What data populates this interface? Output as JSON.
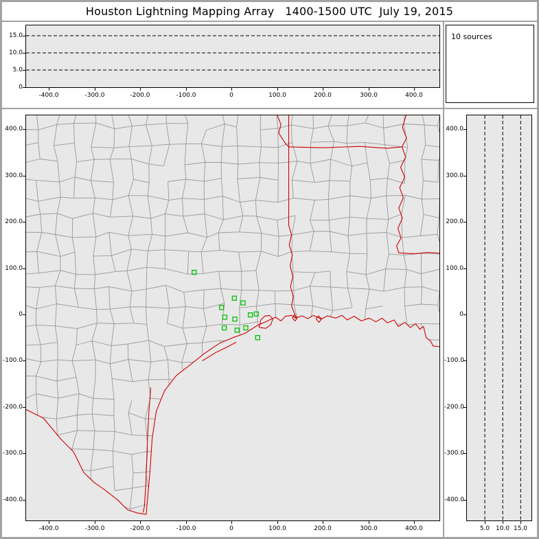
{
  "title": "Houston Lightning Mapping Array   1400-1500 UTC  July 19, 2015",
  "sources_panel": {
    "label": "10 sources"
  },
  "colors": {
    "station_green": "#00c000",
    "boundary_red": "#cc0000",
    "county_gray": "#999999",
    "plot_background": "#e8e8e8",
    "frame_gray": "#a2a2a2"
  },
  "chart_data": [
    {
      "id": "altitude-vs-eastwest",
      "type": "scatter",
      "position": "top",
      "xlim": [
        -450,
        455
      ],
      "ylim": [
        0,
        18
      ],
      "x_ticks": [
        -400,
        -300,
        -200,
        -100,
        0,
        100,
        200,
        300,
        400
      ],
      "x_tick_labels": [
        "-400.0",
        "-300.0",
        "-200.0",
        "-100.0",
        "0",
        "100.0",
        "200.0",
        "300.0",
        "400.0"
      ],
      "y_ticks": [
        0,
        5,
        10,
        15
      ],
      "y_tick_labels": [
        "0",
        "5.0",
        "10.0",
        "15.0"
      ],
      "y_gridlines": [
        5,
        10,
        15
      ],
      "gridline_style": "dashed",
      "points": []
    },
    {
      "id": "plan-view-map",
      "type": "scatter",
      "position": "main",
      "xlim": [
        -450,
        455
      ],
      "ylim": [
        -445,
        430
      ],
      "x_ticks": [
        -400,
        -300,
        -200,
        -100,
        0,
        100,
        200,
        300,
        400
      ],
      "x_tick_labels": [
        "-400.0",
        "-300.0",
        "-200.0",
        "-100.0",
        "0",
        "100.0",
        "200.0",
        "300.0",
        "400.0"
      ],
      "y_ticks": [
        400,
        300,
        200,
        100,
        0,
        -100,
        -200,
        -300,
        -400
      ],
      "y_tick_labels": [
        "400.0",
        "300.0",
        "200.0",
        "100.0",
        "0",
        "-100.0",
        "-200.0",
        "-300.0",
        "-400.0"
      ],
      "map_layers": [
        "county-boundaries-gray",
        "state-borders-red",
        "coastline-red"
      ],
      "station_marker": "open-green-square",
      "stations": [
        [
          -82,
          91
        ],
        [
          6,
          35
        ],
        [
          25,
          25
        ],
        [
          -22,
          15
        ],
        [
          -15,
          -6
        ],
        [
          7,
          -10
        ],
        [
          -16,
          -29
        ],
        [
          12,
          -34
        ],
        [
          31,
          -29
        ],
        [
          41,
          -1
        ],
        [
          54,
          1
        ],
        [
          57,
          -50
        ]
      ]
    },
    {
      "id": "altitude-vs-northsouth",
      "type": "scatter",
      "position": "right",
      "xlim": [
        0,
        18
      ],
      "ylim": [
        -445,
        430
      ],
      "x_ticks": [
        5,
        10,
        15
      ],
      "x_tick_labels": [
        "5.0",
        "10.0",
        "15.0"
      ],
      "y_ticks": [
        400,
        300,
        200,
        100,
        0,
        -100,
        -200,
        -300,
        -400
      ],
      "y_tick_labels": [
        "400.0",
        "300.0",
        "200.0",
        "100.0",
        "0",
        "-100.0",
        "-200.0",
        "-300.0",
        "-400.0"
      ],
      "x_gridlines": [
        5,
        10,
        15
      ],
      "gridline_style": "dashed",
      "points": []
    }
  ]
}
